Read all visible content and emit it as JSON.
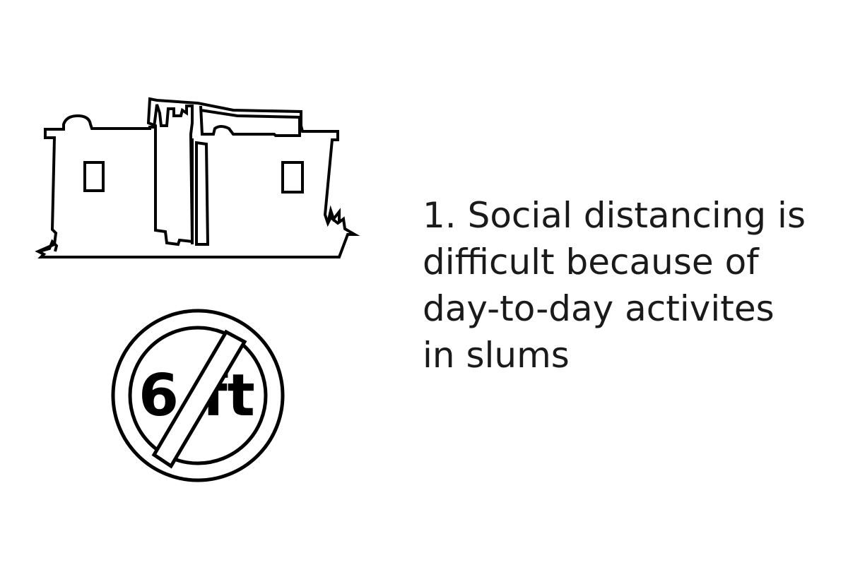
{
  "illustration": {
    "buildings_icon": "slum-buildings-icon",
    "sign_icon": "no-social-distance-icon",
    "sign_number": "6",
    "sign_unit": "ft"
  },
  "caption": {
    "lines": [
      "1. Social distancing is",
      "difficult because of",
      "day-to-day activites",
      "in slums"
    ]
  },
  "colors": {
    "stroke": "#000000",
    "text": "#1a1a1a",
    "background": "#ffffff"
  }
}
